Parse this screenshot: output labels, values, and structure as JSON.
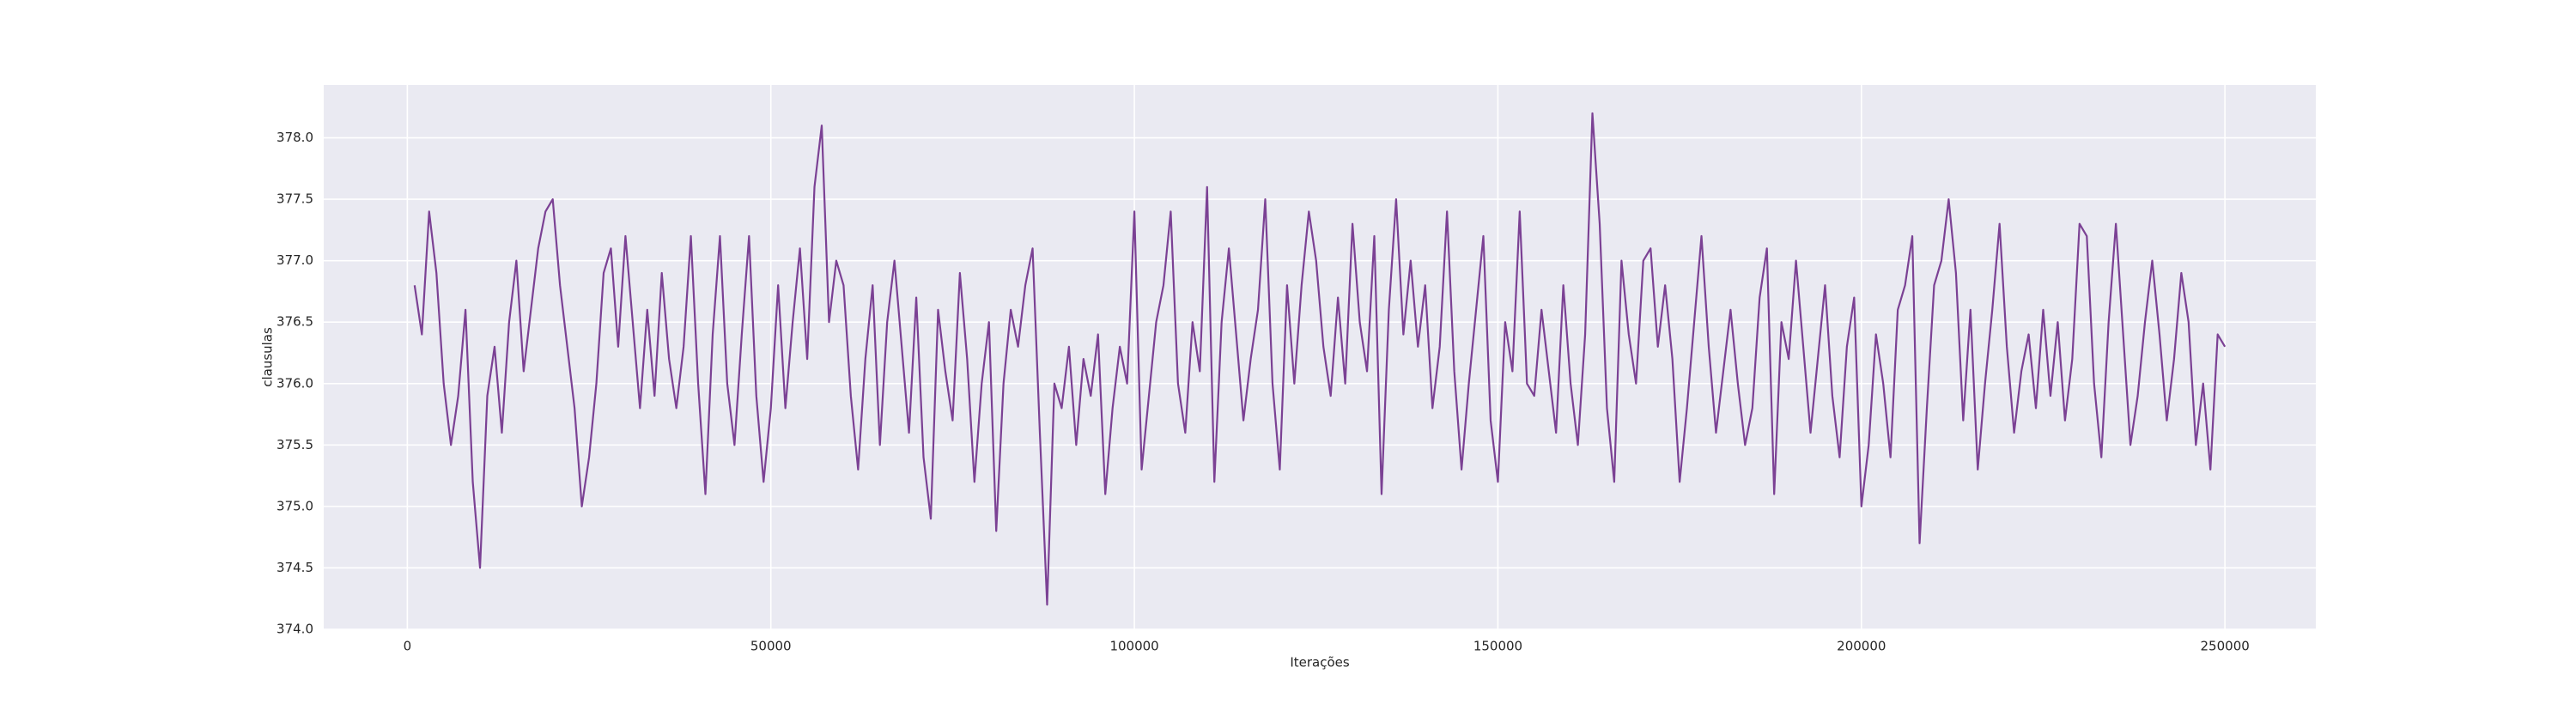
{
  "chart_data": {
    "type": "line",
    "x_label": "Iterações",
    "y_label": "clausulas",
    "color": "#7b4194",
    "grid": true,
    "xlim": [
      -11500,
      262500
    ],
    "ylim": [
      374,
      378.43
    ],
    "xticks": [
      0,
      50000,
      100000,
      150000,
      200000,
      250000
    ],
    "yticks": [
      {
        "value": 374,
        "label": "374.0"
      },
      374.5,
      {
        "value": 375,
        "label": "375.0"
      },
      375.5,
      {
        "value": 376,
        "label": "376.0"
      },
      376.5,
      {
        "value": 377,
        "label": "377.0"
      },
      377.5,
      {
        "value": 378,
        "label": "378.0"
      }
    ],
    "x": [
      1000,
      2000,
      3000,
      4000,
      5000,
      6000,
      7000,
      8000,
      9000,
      10000,
      11000,
      12000,
      13000,
      14000,
      15000,
      16000,
      17000,
      18000,
      19000,
      20000,
      21000,
      22000,
      23000,
      24000,
      25000,
      26000,
      27000,
      28000,
      29000,
      30000,
      31000,
      32000,
      33000,
      34000,
      35000,
      36000,
      37000,
      38000,
      39000,
      40000,
      41000,
      42000,
      43000,
      44000,
      45000,
      46000,
      47000,
      48000,
      49000,
      50000,
      51000,
      52000,
      53000,
      54000,
      55000,
      56000,
      57000,
      58000,
      59000,
      60000,
      61000,
      62000,
      63000,
      64000,
      65000,
      66000,
      67000,
      68000,
      69000,
      70000,
      71000,
      72000,
      73000,
      74000,
      75000,
      76000,
      77000,
      78000,
      79000,
      80000,
      81000,
      82000,
      83000,
      84000,
      85000,
      86000,
      87000,
      88000,
      89000,
      90000,
      91000,
      92000,
      93000,
      94000,
      95000,
      96000,
      97000,
      98000,
      99000,
      100000,
      101000,
      102000,
      103000,
      104000,
      105000,
      106000,
      107000,
      108000,
      109000,
      110000,
      111000,
      112000,
      113000,
      114000,
      115000,
      116000,
      117000,
      118000,
      119000,
      120000,
      121000,
      122000,
      123000,
      124000,
      125000,
      126000,
      127000,
      128000,
      129000,
      130000,
      131000,
      132000,
      133000,
      134000,
      135000,
      136000,
      137000,
      138000,
      139000,
      140000,
      141000,
      142000,
      143000,
      144000,
      145000,
      146000,
      147000,
      148000,
      149000,
      150000,
      151000,
      152000,
      153000,
      154000,
      155000,
      156000,
      157000,
      158000,
      159000,
      160000,
      161000,
      162000,
      163000,
      164000,
      165000,
      166000,
      167000,
      168000,
      169000,
      170000,
      171000,
      172000,
      173000,
      174000,
      175000,
      176000,
      177000,
      178000,
      179000,
      180000,
      181000,
      182000,
      183000,
      184000,
      185000,
      186000,
      187000,
      188000,
      189000,
      190000,
      191000,
      192000,
      193000,
      194000,
      195000,
      196000,
      197000,
      198000,
      199000,
      200000,
      201000,
      202000,
      203000,
      204000,
      205000,
      206000,
      207000,
      208000,
      209000,
      210000,
      211000,
      212000,
      213000,
      214000,
      215000,
      216000,
      217000,
      218000,
      219000,
      220000,
      221000,
      222000,
      223000,
      224000,
      225000,
      226000,
      227000,
      228000,
      229000,
      230000,
      231000,
      232000,
      233000,
      234000,
      235000,
      236000,
      237000,
      238000,
      239000,
      240000,
      241000,
      242000,
      243000,
      244000,
      245000,
      246000,
      247000,
      248000,
      249000,
      250000
    ],
    "values": [
      376.8,
      376.4,
      377.4,
      376.9,
      376.0,
      375.5,
      375.9,
      376.6,
      375.2,
      374.5,
      375.9,
      376.3,
      375.6,
      376.5,
      377.0,
      376.1,
      376.6,
      377.1,
      377.4,
      377.5,
      376.8,
      376.3,
      375.8,
      375.0,
      375.4,
      376.0,
      376.9,
      377.1,
      376.3,
      377.2,
      376.5,
      375.8,
      376.6,
      375.9,
      376.9,
      376.2,
      375.8,
      376.3,
      377.2,
      376.0,
      375.1,
      376.4,
      377.2,
      376.0,
      375.5,
      376.4,
      377.2,
      375.9,
      375.2,
      375.8,
      376.8,
      375.8,
      376.5,
      377.1,
      376.2,
      377.6,
      378.1,
      376.5,
      377.0,
      376.8,
      375.9,
      375.3,
      376.2,
      376.8,
      375.5,
      376.5,
      377.0,
      376.3,
      375.6,
      376.7,
      375.4,
      374.9,
      376.6,
      376.1,
      375.7,
      376.9,
      376.2,
      375.2,
      376.0,
      376.5,
      374.8,
      376.0,
      376.6,
      376.3,
      376.8,
      377.1,
      375.6,
      374.2,
      376.0,
      375.8,
      376.3,
      375.5,
      376.2,
      375.9,
      376.4,
      375.1,
      375.8,
      376.3,
      376.0,
      377.4,
      375.3,
      375.9,
      376.5,
      376.8,
      377.4,
      376.0,
      375.6,
      376.5,
      376.1,
      377.6,
      375.2,
      376.5,
      377.1,
      376.4,
      375.7,
      376.2,
      376.6,
      377.5,
      376.0,
      375.3,
      376.8,
      376.0,
      376.8,
      377.4,
      377.0,
      376.3,
      375.9,
      376.7,
      376.0,
      377.3,
      376.5,
      376.1,
      377.2,
      375.1,
      376.6,
      377.5,
      376.4,
      377.0,
      376.3,
      376.8,
      375.8,
      376.3,
      377.4,
      376.1,
      375.3,
      376.0,
      376.6,
      377.2,
      375.7,
      375.2,
      376.5,
      376.1,
      377.4,
      376.0,
      375.9,
      376.6,
      376.1,
      375.6,
      376.8,
      376.0,
      375.5,
      376.4,
      378.2,
      377.3,
      375.8,
      375.2,
      377.0,
      376.4,
      376.0,
      377.0,
      377.1,
      376.3,
      376.8,
      376.2,
      375.2,
      375.8,
      376.5,
      377.2,
      376.3,
      375.6,
      376.1,
      376.6,
      376.0,
      375.5,
      375.8,
      376.7,
      377.1,
      375.1,
      376.5,
      376.2,
      377.0,
      376.3,
      375.6,
      376.2,
      376.8,
      375.9,
      375.4,
      376.3,
      376.7,
      375.0,
      375.5,
      376.4,
      376.0,
      375.4,
      376.6,
      376.8,
      377.2,
      374.7,
      375.8,
      376.8,
      377.0,
      377.5,
      376.9,
      375.7,
      376.6,
      375.3,
      376.0,
      376.6,
      377.3,
      376.3,
      375.6,
      376.1,
      376.4,
      375.8,
      376.6,
      375.9,
      376.5,
      375.7,
      376.2,
      377.3,
      377.2,
      376.0,
      375.4,
      376.5,
      377.3,
      376.4,
      375.5,
      375.9,
      376.5,
      377.0,
      376.4,
      375.7,
      376.2,
      376.9,
      376.5,
      375.5,
      376.0,
      375.3,
      376.4,
      376.3
    ]
  }
}
